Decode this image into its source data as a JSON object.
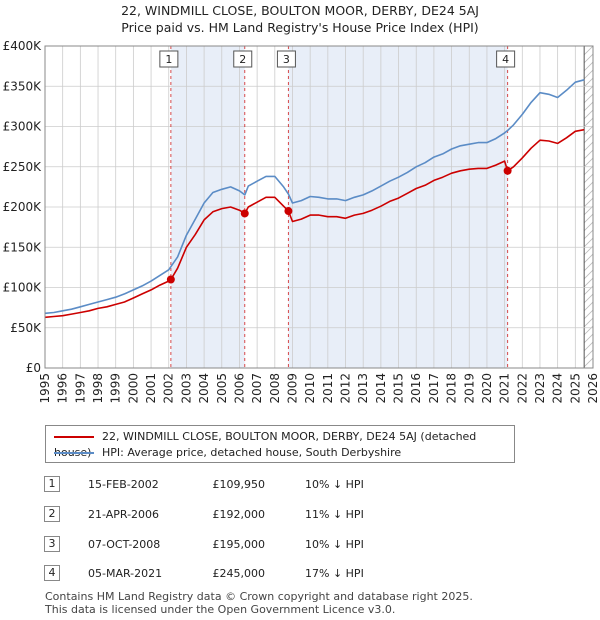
{
  "title_line1": "22, WINDMILL CLOSE, BOULTON MOOR, DERBY, DE24 5AJ",
  "title_line2": "Price paid vs. HM Land Registry's House Price Index (HPI)",
  "legend": {
    "property_label": "22, WINDMILL CLOSE, BOULTON MOOR, DERBY, DE24 5AJ (detached house)",
    "hpi_label": "HPI: Average price, detached house, South Derbyshire"
  },
  "colors": {
    "property": "#cc0000",
    "hpi": "#5b8cc6",
    "shade": "#e8eef8",
    "grid": "#cccccc",
    "vline": "#cc0000"
  },
  "transactions": [
    {
      "num": "1",
      "date": "15-FEB-2002",
      "price": "£109,950",
      "hpi": "10% ↓ HPI"
    },
    {
      "num": "2",
      "date": "21-APR-2006",
      "price": "£192,000",
      "hpi": "11% ↓ HPI"
    },
    {
      "num": "3",
      "date": "07-OCT-2008",
      "price": "£195,000",
      "hpi": "10% ↓ HPI"
    },
    {
      "num": "4",
      "date": "05-MAR-2021",
      "price": "£245,000",
      "hpi": "17% ↓ HPI"
    }
  ],
  "footer": {
    "line1": "Contains HM Land Registry data © Crown copyright and database right 2025.",
    "line2": "This data is licensed under the Open Government Licence v3.0."
  },
  "chart_data": {
    "type": "line",
    "title": "22, WINDMILL CLOSE, BOULTON MOOR, DERBY, DE24 5AJ — Price paid vs. HM Land Registry's House Price Index (HPI)",
    "xlabel": "",
    "ylabel": "",
    "xlim": [
      1995,
      2026
    ],
    "ylim": [
      0,
      400000
    ],
    "x_ticks": [
      1995,
      1996,
      1997,
      1998,
      1999,
      2000,
      2001,
      2002,
      2003,
      2004,
      2005,
      2006,
      2007,
      2008,
      2009,
      2010,
      2011,
      2012,
      2013,
      2014,
      2015,
      2016,
      2017,
      2018,
      2019,
      2020,
      2021,
      2022,
      2023,
      2024,
      2025,
      2026
    ],
    "y_ticks": [
      {
        "value": 0,
        "label": "£0"
      },
      {
        "value": 50000,
        "label": "£50K"
      },
      {
        "value": 100000,
        "label": "£100K"
      },
      {
        "value": 150000,
        "label": "£150K"
      },
      {
        "value": 200000,
        "label": "£200K"
      },
      {
        "value": 250000,
        "label": "£250K"
      },
      {
        "value": 300000,
        "label": "£300K"
      },
      {
        "value": 350000,
        "label": "£350K"
      },
      {
        "value": 400000,
        "label": "£400K"
      }
    ],
    "grid": true,
    "shaded_ranges": [
      [
        2002.12,
        2006.3
      ],
      [
        2008.77,
        2021.17
      ]
    ],
    "data_end": 2025.5,
    "markers": [
      {
        "label": "1",
        "x": 2002.12,
        "y": 109950
      },
      {
        "label": "2",
        "x": 2006.3,
        "y": 192000
      },
      {
        "label": "3",
        "x": 2008.77,
        "y": 195000
      },
      {
        "label": "4",
        "x": 2021.17,
        "y": 245000
      }
    ],
    "series": [
      {
        "name": "HPI: Average price, detached house, South Derbyshire",
        "x": [
          1995.0,
          1995.5,
          1996.0,
          1996.5,
          1997.0,
          1997.5,
          1998.0,
          1998.5,
          1999.0,
          1999.5,
          2000.0,
          2000.5,
          2001.0,
          2001.5,
          2002.0,
          2002.5,
          2003.0,
          2003.5,
          2004.0,
          2004.5,
          2005.0,
          2005.5,
          2006.0,
          2006.3,
          2006.5,
          2007.0,
          2007.5,
          2008.0,
          2008.5,
          2008.77,
          2009.0,
          2009.5,
          2010.0,
          2010.5,
          2011.0,
          2011.5,
          2012.0,
          2012.5,
          2013.0,
          2013.5,
          2014.0,
          2014.5,
          2015.0,
          2015.5,
          2016.0,
          2016.5,
          2017.0,
          2017.5,
          2018.0,
          2018.5,
          2019.0,
          2019.5,
          2020.0,
          2020.5,
          2021.0,
          2021.17,
          2021.5,
          2022.0,
          2022.5,
          2023.0,
          2023.5,
          2024.0,
          2024.5,
          2025.0,
          2025.5
        ],
        "y": [
          68000,
          69000,
          71000,
          73000,
          76000,
          79000,
          82000,
          85000,
          88000,
          92000,
          97000,
          102000,
          108000,
          115000,
          122000,
          138000,
          165000,
          185000,
          205000,
          218000,
          222000,
          225000,
          220000,
          215000,
          226000,
          232000,
          238000,
          238000,
          225000,
          216000,
          205000,
          208000,
          213000,
          212000,
          210000,
          210000,
          208000,
          212000,
          215000,
          220000,
          226000,
          232000,
          237000,
          243000,
          250000,
          255000,
          262000,
          266000,
          272000,
          276000,
          278000,
          280000,
          280000,
          285000,
          292000,
          295000,
          302000,
          315000,
          330000,
          342000,
          340000,
          336000,
          345000,
          355000,
          358000
        ]
      },
      {
        "name": "22, WINDMILL CLOSE, BOULTON MOOR, DERBY, DE24 5AJ (detached house)",
        "x": [
          1995.0,
          1995.5,
          1996.0,
          1996.5,
          1997.0,
          1997.5,
          1998.0,
          1998.5,
          1999.0,
          1999.5,
          2000.0,
          2000.5,
          2001.0,
          2001.5,
          2002.0,
          2002.12,
          2002.5,
          2003.0,
          2003.5,
          2004.0,
          2004.5,
          2005.0,
          2005.5,
          2006.0,
          2006.3,
          2006.5,
          2007.0,
          2007.5,
          2008.0,
          2008.5,
          2008.77,
          2009.0,
          2009.5,
          2010.0,
          2010.5,
          2011.0,
          2011.5,
          2012.0,
          2012.5,
          2013.0,
          2013.5,
          2014.0,
          2014.5,
          2015.0,
          2015.5,
          2016.0,
          2016.5,
          2017.0,
          2017.5,
          2018.0,
          2018.5,
          2019.0,
          2019.5,
          2020.0,
          2020.5,
          2021.0,
          2021.17,
          2021.5,
          2022.0,
          2022.5,
          2023.0,
          2023.5,
          2024.0,
          2024.5,
          2025.0,
          2025.5
        ],
        "y": [
          63000,
          64000,
          65000,
          67000,
          69000,
          71000,
          74000,
          76000,
          79000,
          82000,
          87000,
          92000,
          97000,
          103000,
          108000,
          109950,
          124000,
          150000,
          166000,
          184000,
          194000,
          198000,
          200000,
          196000,
          192000,
          200000,
          206000,
          212000,
          212000,
          201000,
          195000,
          182000,
          185000,
          190000,
          190000,
          188000,
          188000,
          186000,
          190000,
          192000,
          196000,
          201000,
          207000,
          211000,
          217000,
          223000,
          227000,
          233000,
          237000,
          242000,
          245000,
          247000,
          248000,
          248000,
          252000,
          257000,
          245000,
          250000,
          261000,
          273000,
          283000,
          282000,
          279000,
          286000,
          294000,
          296000
        ]
      }
    ]
  }
}
